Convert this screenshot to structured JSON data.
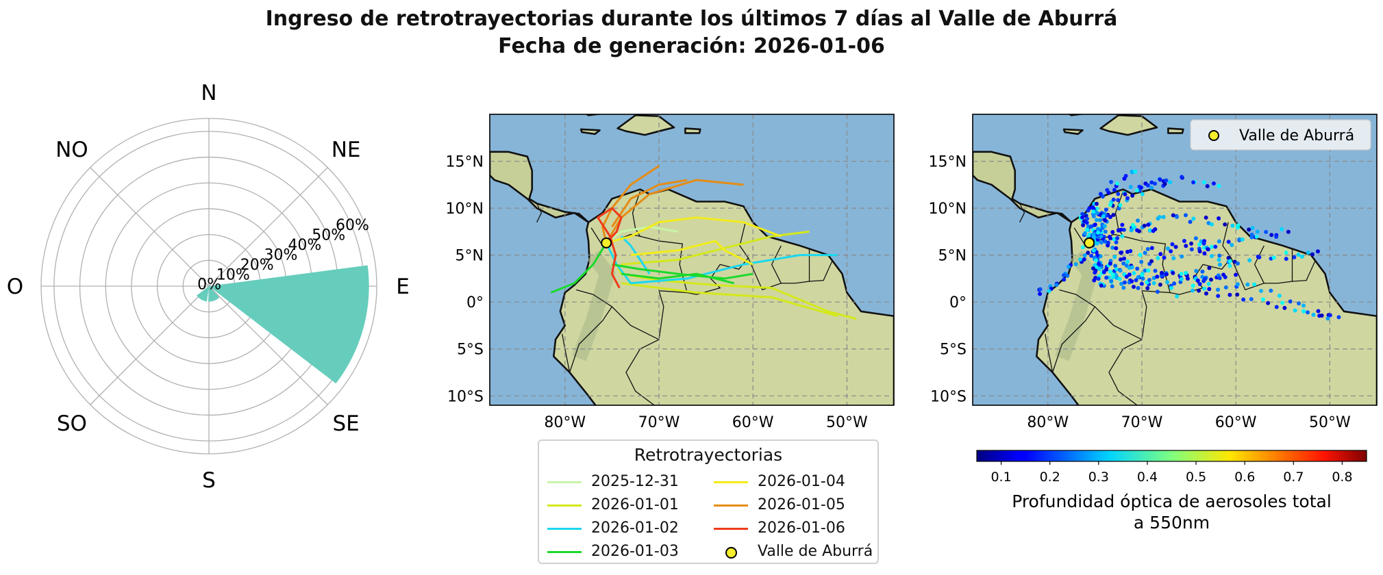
{
  "title_line1": "Ingreso de retrotrayectorias durante los últimos 7 días al Valle de Aburrá",
  "title_line2": "Fecha de generación: 2026-01-06",
  "chart_data": [
    {
      "type": "polar-bar",
      "directions": [
        "N",
        "NE",
        "E",
        "SE",
        "S",
        "SO",
        "O",
        "NO"
      ],
      "radial_ticks": [
        "0%",
        "10%",
        "20%",
        "30%",
        "40%",
        "50%",
        "60%"
      ],
      "rmax": 65,
      "bar_color": "#66cdbd",
      "bars": [
        {
          "direction_deg": 105,
          "value": 62
        },
        {
          "direction_deg": 160,
          "value": 6
        },
        {
          "direction_deg": 210,
          "value": 6
        }
      ]
    },
    {
      "type": "line",
      "lon_ticks": [
        "80°W",
        "70°W",
        "60°W",
        "50°W"
      ],
      "lat_ticks": [
        "15°N",
        "10°N",
        "5°N",
        "0°",
        "5°S",
        "10°S"
      ],
      "lon_range": [
        -88,
        -45
      ],
      "lat_range": [
        -11,
        20
      ],
      "legend_title": "Retrotrayectorias",
      "origin": {
        "name": "Valle de Aburrá",
        "lon": -75.6,
        "lat": 6.3
      },
      "series": [
        {
          "name": "2025-12-31",
          "color": "#c8f5a8",
          "paths": [
            [
              [
                -75.6,
                6.3
              ],
              [
                -74,
                7.5
              ],
              [
                -71,
                8
              ],
              [
                -68,
                7.5
              ]
            ]
          ]
        },
        {
          "name": "2026-01-01",
          "color": "#d4e81a",
          "paths": [
            [
              [
                -75.6,
                6.3
              ],
              [
                -74,
                3
              ],
              [
                -70,
                2.3
              ],
              [
                -64,
                1.8
              ],
              [
                -58,
                1.5
              ],
              [
                -52,
                -1
              ],
              [
                -49,
                -1.8
              ]
            ],
            [
              [
                -74,
                4
              ],
              [
                -68,
                4.5
              ],
              [
                -62,
                6
              ],
              [
                -58,
                7
              ],
              [
                -54,
                7.5
              ]
            ],
            [
              [
                -74,
                2
              ],
              [
                -66,
                1
              ],
              [
                -58,
                0.5
              ],
              [
                -51,
                -1.5
              ]
            ]
          ]
        },
        {
          "name": "2026-01-02",
          "color": "#1ad8ef",
          "paths": [
            [
              [
                -75.6,
                6.3
              ],
              [
                -74.5,
                4
              ],
              [
                -73,
                2
              ],
              [
                -67,
                2.5
              ],
              [
                -61,
                4
              ],
              [
                -55,
                5
              ],
              [
                -51,
                5
              ]
            ],
            [
              [
                -74,
                7
              ],
              [
                -73,
                6
              ],
              [
                -71,
                3
              ]
            ]
          ]
        },
        {
          "name": "2026-01-03",
          "color": "#1ad92a",
          "paths": [
            [
              [
                -75.6,
                6.3
              ],
              [
                -77,
                4
              ],
              [
                -79,
                2
              ],
              [
                -81.5,
                1
              ]
            ],
            [
              [
                -75,
                4
              ],
              [
                -72,
                3.5
              ],
              [
                -68,
                3
              ],
              [
                -63,
                2.5
              ],
              [
                -60,
                3
              ]
            ],
            [
              [
                -74,
                3
              ],
              [
                -70,
                2.5
              ],
              [
                -66,
                3
              ],
              [
                -62,
                2
              ]
            ]
          ]
        },
        {
          "name": "2026-01-04",
          "color": "#f2ec1a",
          "paths": [
            [
              [
                -75.6,
                6.3
              ],
              [
                -73,
                7
              ],
              [
                -70,
                8.5
              ],
              [
                -66,
                9
              ],
              [
                -61,
                8.5
              ],
              [
                -57,
                7
              ]
            ],
            [
              [
                -73,
                5
              ],
              [
                -68,
                5.5
              ],
              [
                -64,
                6.5
              ],
              [
                -63,
                5.5
              ],
              [
                -60,
                4
              ]
            ]
          ]
        },
        {
          "name": "2026-01-05",
          "color": "#e68c14",
          "paths": [
            [
              [
                -75.6,
                6.3
              ],
              [
                -76,
                8
              ],
              [
                -75,
                10
              ],
              [
                -73,
                12.5
              ],
              [
                -70,
                14.5
              ]
            ],
            [
              [
                -75.6,
                6.3
              ],
              [
                -74,
                9
              ],
              [
                -71,
                11.5
              ],
              [
                -66,
                13
              ],
              [
                -61,
                12.5
              ]
            ],
            [
              [
                -75,
                8
              ],
              [
                -73,
                11
              ],
              [
                -70,
                12.5
              ],
              [
                -67,
                13
              ]
            ]
          ]
        },
        {
          "name": "2026-01-06",
          "color": "#ef3a1a",
          "paths": [
            [
              [
                -75.6,
                6.3
              ],
              [
                -74.5,
                7.5
              ],
              [
                -74,
                9
              ],
              [
                -75,
                10
              ],
              [
                -76.5,
                9
              ],
              [
                -75.2,
                7
              ],
              [
                -74.6,
                5
              ],
              [
                -75,
                3
              ],
              [
                -74.2,
                1.5
              ]
            ]
          ]
        }
      ]
    },
    {
      "type": "scatter",
      "lon_ticks": [
        "80°W",
        "70°W",
        "60°W",
        "50°W"
      ],
      "lat_ticks": [
        "15°N",
        "10°N",
        "5°N",
        "0°",
        "5°S",
        "10°S"
      ],
      "lon_range": [
        -88,
        -45
      ],
      "lat_range": [
        -11,
        20
      ],
      "legend_label": "Valle de Aburrá",
      "origin": {
        "lon": -75.6,
        "lat": 6.3
      },
      "colorbar_ticks": [
        0.1,
        0.2,
        0.3,
        0.4,
        0.5,
        0.6,
        0.7,
        0.8
      ],
      "colorbar_range": [
        0.05,
        0.85
      ],
      "colorbar_label_line1": "Profundidad óptica de aerosoles total",
      "colorbar_label_line2": "a 550nm"
    }
  ]
}
